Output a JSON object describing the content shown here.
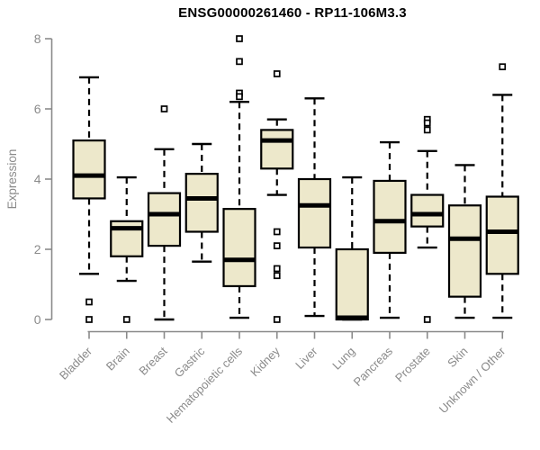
{
  "chart_data": {
    "type": "boxplot",
    "title": "ENSG00000261460 - RP11-106M3.3",
    "ylabel": "Expression",
    "xlabel": "",
    "ylim": [
      0,
      8
    ],
    "yticks": [
      0,
      2,
      4,
      6,
      8
    ],
    "grid": false,
    "legend": false,
    "categories": [
      "Bladder",
      "Brain",
      "Breast",
      "Gastric",
      "Hematopoietic cells",
      "Kidney",
      "Liver",
      "Lung",
      "Pancreas",
      "Prostate",
      "Skin",
      "Unknown / Other"
    ],
    "series": [
      {
        "name": "Bladder",
        "whisker_low": 1.3,
        "q1": 3.45,
        "median": 4.1,
        "q3": 5.1,
        "whisker_high": 6.9,
        "outliers": [
          0.5,
          0
        ]
      },
      {
        "name": "Brain",
        "whisker_low": 1.1,
        "q1": 1.8,
        "median": 2.6,
        "q3": 2.8,
        "whisker_high": 4.05,
        "outliers": [
          0
        ]
      },
      {
        "name": "Breast",
        "whisker_low": 0.0,
        "q1": 2.1,
        "median": 3.0,
        "q3": 3.6,
        "whisker_high": 4.85,
        "outliers": [
          6.0
        ]
      },
      {
        "name": "Gastric",
        "whisker_low": 1.65,
        "q1": 2.5,
        "median": 3.45,
        "q3": 4.15,
        "whisker_high": 5.0,
        "outliers": []
      },
      {
        "name": "Hematopoietic cells",
        "whisker_low": 0.05,
        "q1": 0.95,
        "median": 1.7,
        "q3": 3.15,
        "whisker_high": 6.2,
        "outliers": [
          8.0,
          7.35,
          6.45,
          6.35
        ]
      },
      {
        "name": "Kidney",
        "whisker_low": 3.55,
        "q1": 4.3,
        "median": 5.1,
        "q3": 5.4,
        "whisker_high": 5.7,
        "outliers": [
          7.0,
          2.5,
          2.1,
          1.45,
          1.25,
          0
        ]
      },
      {
        "name": "Liver",
        "whisker_low": 0.1,
        "q1": 2.05,
        "median": 3.25,
        "q3": 4.0,
        "whisker_high": 6.3,
        "outliers": []
      },
      {
        "name": "Lung",
        "whisker_low": 0.0,
        "q1": 0.0,
        "median": 0.05,
        "q3": 2.0,
        "whisker_high": 4.05,
        "outliers": []
      },
      {
        "name": "Pancreas",
        "whisker_low": 0.05,
        "q1": 1.9,
        "median": 2.8,
        "q3": 3.95,
        "whisker_high": 5.05,
        "outliers": []
      },
      {
        "name": "Prostate",
        "whisker_low": 2.05,
        "q1": 2.65,
        "median": 3.0,
        "q3": 3.55,
        "whisker_high": 4.8,
        "outliers": [
          5.7,
          5.6,
          5.4,
          0
        ]
      },
      {
        "name": "Skin",
        "whisker_low": 0.05,
        "q1": 0.65,
        "median": 2.3,
        "q3": 3.25,
        "whisker_high": 4.4,
        "outliers": []
      },
      {
        "name": "Unknown / Other",
        "whisker_low": 0.05,
        "q1": 1.3,
        "median": 2.5,
        "q3": 3.5,
        "whisker_high": 6.4,
        "outliers": [
          7.2
        ]
      }
    ],
    "colors": {
      "box_fill": "#ede8cb",
      "box_stroke": "#000000",
      "median": "#000000",
      "whisker": "#000000",
      "outlier_fill": "#ffffff",
      "outlier_stroke": "#000000",
      "axis": "#8a8a8a",
      "tick_label": "#8a8a8a",
      "title": "#000000",
      "background": "#ffffff"
    }
  }
}
